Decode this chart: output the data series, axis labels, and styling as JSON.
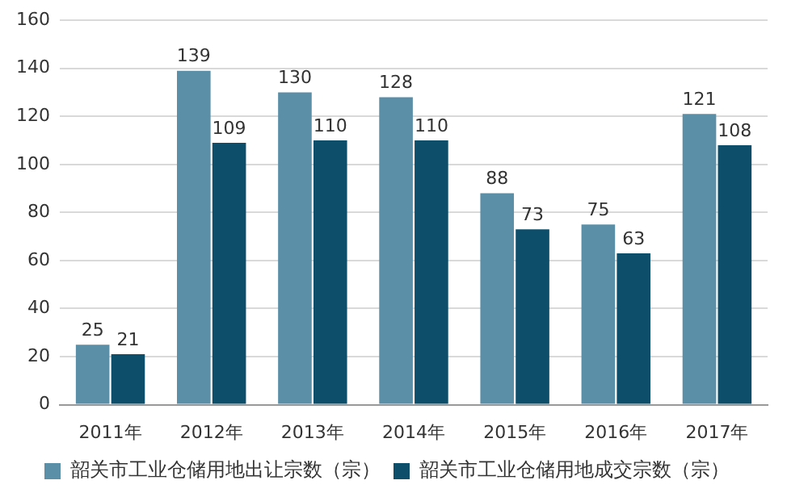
{
  "chart_data": {
    "type": "bar",
    "categories": [
      "2011年",
      "2012年",
      "2013年",
      "2014年",
      "2015年",
      "2016年",
      "2017年"
    ],
    "series": [
      {
        "name": "韶关市工业仓储用地出让宗数（宗）",
        "color": "#5b8fa8",
        "values": [
          25,
          139,
          130,
          128,
          88,
          75,
          121
        ]
      },
      {
        "name": "韶关市工业仓储用地成交宗数（宗）",
        "color": "#0d4f6b",
        "values": [
          21,
          109,
          110,
          110,
          73,
          63,
          108
        ]
      }
    ],
    "ylim": [
      0,
      160
    ],
    "yticks": [
      0,
      20,
      40,
      60,
      80,
      100,
      120,
      140,
      160
    ],
    "grid": "y",
    "legend": "bottom",
    "data_labels": true
  }
}
